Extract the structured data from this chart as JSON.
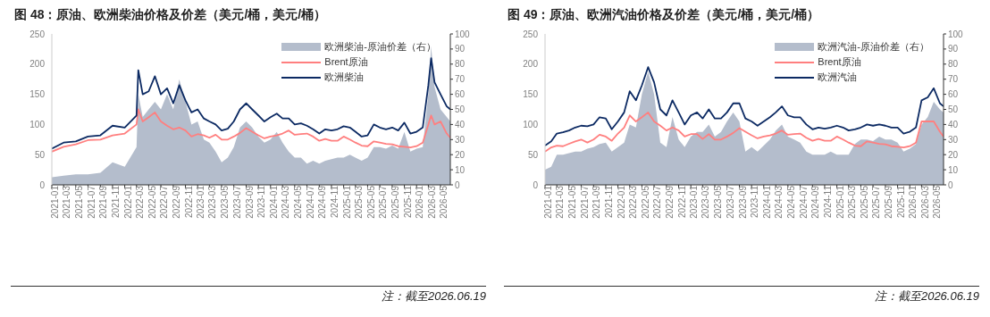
{
  "chart_data": [
    {
      "type": "line",
      "title": "图 48：原油、欧洲柴油价格及价差（美元/桶，美元/桶）",
      "annotations": [
        "注：截至2026.06.19"
      ],
      "legend": "top right",
      "x": [
        "2021-01",
        "2021-03",
        "2021-05",
        "2021-07",
        "2021-09",
        "2021-11",
        "2022-01",
        "2022-03",
        "2022-03-10",
        "2022-04",
        "2022-05",
        "2022-06",
        "2022-07",
        "2022-08",
        "2022-09",
        "2022-10",
        "2022-11",
        "2022-12",
        "2023-01",
        "2023-02",
        "2023-03",
        "2023-04",
        "2023-05",
        "2023-06",
        "2023-07",
        "2023-08",
        "2023-09",
        "2023-10",
        "2023-11",
        "2023-12",
        "2024-01",
        "2024-02",
        "2024-03",
        "2024-04",
        "2024-05",
        "2024-06",
        "2024-07",
        "2024-08",
        "2024-09",
        "2024-10",
        "2024-11",
        "2024-12",
        "2025-01",
        "2025-02",
        "2025-03",
        "2025-04",
        "2025-05",
        "2025-06",
        "2025-07",
        "2025-08",
        "2025-09",
        "2025-10",
        "2025-11",
        "2025-12",
        "2026-01",
        "2026-02",
        "2026-03",
        "2026-03-15",
        "2026-04",
        "2026-05",
        "2026-06",
        "2026-06-19"
      ],
      "xlim": [
        "2021-01",
        "2026-06-19"
      ],
      "xticks": [
        "2021-01",
        "2021-03",
        "2021-05",
        "2021-07",
        "2021-09",
        "2021-11",
        "2022-01",
        "2022-03",
        "2022-05",
        "2022-07",
        "2022-09",
        "2022-11",
        "2023-01",
        "2023-03",
        "2023-05",
        "2023-07",
        "2023-09",
        "2023-11",
        "2024-01",
        "2024-03",
        "2024-05",
        "2024-07",
        "2024-09",
        "2024-11",
        "2025-01",
        "2025-03",
        "2025-05",
        "2025-07",
        "2025-09",
        "2025-11",
        "2026-01",
        "2026-03",
        "2026-05"
      ],
      "ylim": [
        0,
        250
      ],
      "yticks": [
        0,
        50,
        100,
        150,
        200,
        250
      ],
      "y2lim": [
        0,
        100
      ],
      "y2ticks": [
        0,
        10,
        20,
        30,
        40,
        50,
        60,
        70,
        80,
        90,
        100
      ],
      "series": [
        {
          "name": "欧洲柴油-原油价差（右）",
          "type": "area",
          "axis": "y2",
          "color": "#b4bdcc",
          "values": [
            5,
            6,
            7,
            7,
            8,
            15,
            12,
            25,
            60,
            45,
            50,
            55,
            50,
            60,
            50,
            70,
            55,
            40,
            42,
            30,
            28,
            22,
            15,
            18,
            25,
            38,
            42,
            38,
            32,
            28,
            30,
            35,
            28,
            22,
            18,
            18,
            14,
            16,
            14,
            16,
            17,
            18,
            18,
            20,
            18,
            16,
            18,
            25,
            25,
            24,
            26,
            24,
            35,
            22,
            24,
            25,
            60,
            92,
            65,
            50,
            45,
            42
          ]
        },
        {
          "name": "Brent原油",
          "color": "#ff7f7f",
          "values": [
            55,
            63,
            67,
            74,
            75,
            82,
            85,
            100,
            125,
            105,
            112,
            120,
            105,
            98,
            92,
            95,
            90,
            80,
            84,
            82,
            78,
            83,
            75,
            75,
            80,
            86,
            94,
            88,
            82,
            77,
            80,
            82,
            85,
            90,
            83,
            84,
            85,
            80,
            73,
            76,
            73,
            73,
            80,
            75,
            70,
            65,
            64,
            72,
            70,
            68,
            67,
            64,
            63,
            62,
            64,
            70,
            100,
            115,
            100,
            105,
            85,
            78
          ]
        },
        {
          "name": "欧洲柴油",
          "color": "#0c2a63",
          "values": [
            60,
            70,
            72,
            80,
            82,
            98,
            95,
            115,
            190,
            150,
            155,
            180,
            150,
            160,
            135,
            165,
            140,
            120,
            125,
            110,
            105,
            100,
            90,
            93,
            105,
            125,
            135,
            125,
            115,
            105,
            112,
            118,
            110,
            110,
            100,
            102,
            98,
            92,
            85,
            92,
            90,
            92,
            97,
            95,
            88,
            80,
            82,
            100,
            95,
            92,
            95,
            90,
            103,
            85,
            88,
            95,
            165,
            210,
            170,
            150,
            130,
            125
          ]
        }
      ]
    },
    {
      "type": "line",
      "title": "图 49：原油、欧洲汽油价格及价差（美元/桶，美元/桶）",
      "annotations": [
        "注：截至2026.06.19"
      ],
      "legend": "top right",
      "x": [
        "2021-01",
        "2021-02",
        "2021-03",
        "2021-04",
        "2021-05",
        "2021-06",
        "2021-07",
        "2021-08",
        "2021-09",
        "2021-10",
        "2021-11",
        "2021-12",
        "2022-01",
        "2022-02",
        "2022-03",
        "2022-04",
        "2022-05",
        "2022-06",
        "2022-07",
        "2022-08",
        "2022-09",
        "2022-10",
        "2022-11",
        "2022-12",
        "2023-01",
        "2023-02",
        "2023-03",
        "2023-04",
        "2023-05",
        "2023-06",
        "2023-07",
        "2023-08",
        "2023-09",
        "2023-10",
        "2023-11",
        "2023-12",
        "2024-01",
        "2024-02",
        "2024-03",
        "2024-04",
        "2024-05",
        "2024-06",
        "2024-07",
        "2024-08",
        "2024-09",
        "2024-10",
        "2024-11",
        "2024-12",
        "2025-01",
        "2025-02",
        "2025-03",
        "2025-04",
        "2025-05",
        "2025-06",
        "2025-07",
        "2025-08",
        "2025-09",
        "2025-10",
        "2025-11",
        "2025-12",
        "2026-01",
        "2026-02",
        "2026-03",
        "2026-04",
        "2026-05",
        "2026-06",
        "2026-06-19"
      ],
      "xlim": [
        "2021-01",
        "2026-06-19"
      ],
      "xticks": [
        "2021-01",
        "2021-03",
        "2021-05",
        "2021-07",
        "2021-09",
        "2021-11",
        "2022-01",
        "2022-03",
        "2022-05",
        "2022-07",
        "2022-09",
        "2022-11",
        "2023-01",
        "2023-03",
        "2023-05",
        "2023-07",
        "2023-09",
        "2023-11",
        "2024-01",
        "2024-03",
        "2024-05",
        "2024-07",
        "2024-09",
        "2024-11",
        "2025-01",
        "2025-03",
        "2025-05",
        "2025-07",
        "2025-09",
        "2025-11",
        "2026-01",
        "2026-03",
        "2026-05"
      ],
      "ylim": [
        0,
        250
      ],
      "yticks": [
        0,
        50,
        100,
        150,
        200,
        250
      ],
      "y2lim": [
        0,
        100
      ],
      "y2ticks": [
        0,
        10,
        20,
        30,
        40,
        50,
        60,
        70,
        80,
        90,
        100
      ],
      "series": [
        {
          "name": "欧洲汽油-原油价差（右）",
          "type": "area",
          "axis": "y2",
          "color": "#b4bdcc",
          "values": [
            10,
            12,
            20,
            20,
            21,
            22,
            22,
            24,
            25,
            27,
            28,
            22,
            25,
            28,
            40,
            38,
            60,
            75,
            60,
            28,
            25,
            45,
            30,
            25,
            32,
            35,
            35,
            40,
            32,
            35,
            42,
            48,
            42,
            22,
            25,
            22,
            26,
            30,
            36,
            40,
            32,
            30,
            28,
            22,
            20,
            20,
            20,
            22,
            20,
            20,
            20,
            27,
            30,
            30,
            29,
            32,
            30,
            30,
            28,
            22,
            24,
            27,
            40,
            45,
            55,
            50,
            48
          ]
        },
        {
          "name": "Brent原油",
          "color": "#ff7f7f",
          "values": [
            55,
            62,
            65,
            64,
            68,
            72,
            75,
            70,
            75,
            83,
            80,
            73,
            85,
            95,
            115,
            105,
            112,
            120,
            105,
            98,
            90,
            95,
            90,
            80,
            84,
            84,
            76,
            84,
            75,
            75,
            80,
            86,
            94,
            88,
            82,
            77,
            80,
            82,
            85,
            90,
            83,
            84,
            85,
            78,
            73,
            76,
            73,
            73,
            80,
            75,
            70,
            65,
            64,
            72,
            70,
            68,
            67,
            64,
            63,
            62,
            64,
            70,
            105,
            105,
            105,
            88,
            80
          ]
        },
        {
          "name": "欧洲汽油",
          "color": "#0c2a63",
          "values": [
            65,
            72,
            85,
            87,
            90,
            95,
            98,
            97,
            100,
            112,
            110,
            92,
            105,
            120,
            155,
            140,
            165,
            195,
            170,
            125,
            115,
            140,
            120,
            100,
            115,
            120,
            110,
            125,
            110,
            110,
            120,
            135,
            135,
            110,
            105,
            98,
            105,
            112,
            120,
            130,
            115,
            112,
            112,
            100,
            92,
            95,
            93,
            95,
            98,
            95,
            90,
            92,
            95,
            100,
            98,
            100,
            98,
            95,
            95,
            85,
            88,
            95,
            140,
            145,
            160,
            135,
            130
          ]
        }
      ]
    }
  ]
}
